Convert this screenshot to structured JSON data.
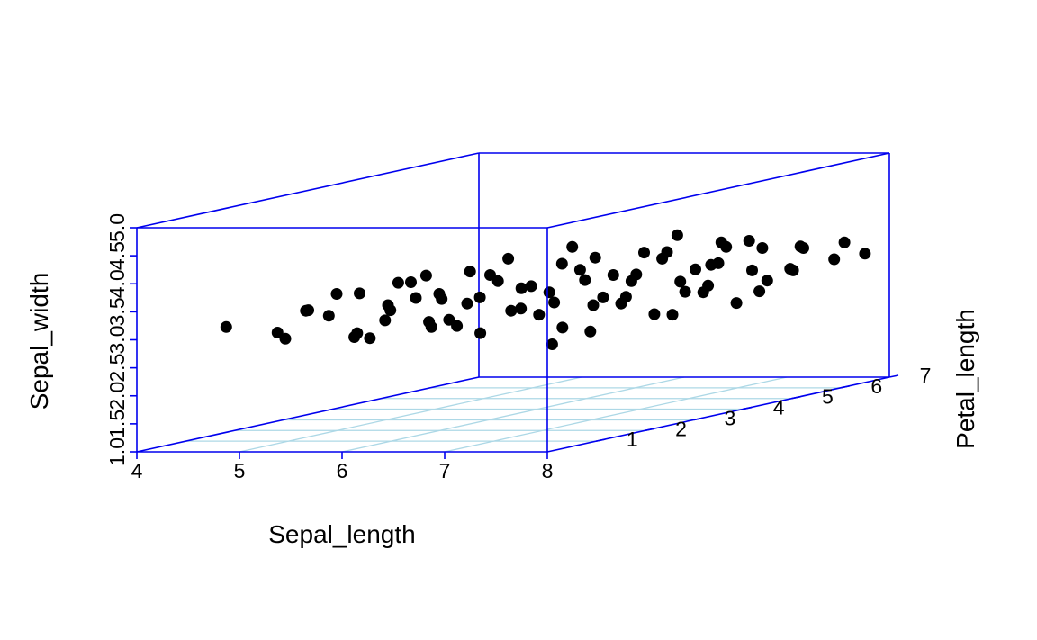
{
  "chart_data": {
    "type": "scatter3d",
    "title": "",
    "xlabel": "Sepal_length",
    "ylabel": "Sepal_width",
    "zlabel": "Petal_length",
    "xlim": [
      4,
      8
    ],
    "ylim": [
      1,
      5
    ],
    "zlim": [
      0,
      7
    ],
    "x_ticks": [
      "4",
      "5",
      "6",
      "7",
      "8"
    ],
    "y_ticks": [
      "1.0",
      "1.5",
      "2.0",
      "2.5",
      "3.0",
      "3.5",
      "4.0",
      "4.5",
      "5.0"
    ],
    "z_ticks": [
      "1",
      "2",
      "3",
      "4",
      "5",
      "6",
      "7"
    ],
    "grid": true,
    "box_color": "#0000ee",
    "grid_color": "#add8e6",
    "point_color": "#000000",
    "series": [
      {
        "x": [
          4.3,
          4.8,
          5.1,
          5.3,
          5.6,
          5.7,
          5.9,
          6.1,
          6.3,
          6.4,
          4.4,
          4.6,
          4.9,
          5.1,
          5.4,
          5.5,
          5.8,
          5.9,
          6.2,
          6.3,
          6.6,
          6.7,
          7.0,
          7.1,
          7.4,
          4.5,
          4.8,
          5.1,
          5.2,
          5.5,
          5.6,
          5.9,
          6.0,
          6.3,
          6.4,
          6.7,
          6.8,
          7.1,
          7.2,
          7.5,
          7.6,
          7.9,
          4.9,
          5.2,
          5.3,
          5.6,
          5.7,
          6.0,
          6.1,
          6.4,
          6.5,
          6.8,
          6.9,
          7.2,
          7.3,
          7.6,
          7.7,
          8.0,
          5.4,
          5.7,
          5.8,
          6.1,
          6.2,
          6.5,
          6.6,
          6.9,
          7.0,
          7.3,
          7.4,
          7.7,
          7.8,
          6.2,
          6.5,
          6.6,
          6.9,
          7.0,
          7.3,
          7.4,
          7.7,
          7.8,
          8.0
        ],
        "y": [
          3.0,
          2.9,
          3.3,
          3.2,
          3.6,
          2.8,
          3.3,
          3.8,
          3.0,
          3.5,
          2.6,
          3.1,
          3.4,
          2.7,
          3.2,
          3.6,
          2.9,
          3.4,
          3.8,
          2.7,
          3.1,
          3.5,
          2.5,
          2.8,
          3.2,
          2.4,
          2.7,
          3.1,
          3.5,
          2.6,
          3.0,
          3.4,
          3.8,
          2.8,
          3.2,
          3.6,
          2.5,
          3.0,
          3.4,
          3.8,
          2.8,
          3.2,
          2.5,
          2.9,
          3.3,
          2.7,
          3.1,
          3.5,
          3.8,
          2.9,
          3.3,
          3.7,
          2.6,
          3.0,
          3.4,
          3.8,
          2.8,
          3.2,
          2.6,
          3.0,
          3.4,
          2.7,
          3.1,
          3.5,
          3.8,
          2.9,
          3.3,
          3.7,
          2.8,
          3.2,
          3.6,
          2.8,
          3.1,
          3.5,
          3.0,
          3.4,
          3.0,
          3.4,
          3.2,
          3.5,
          3.3
        ],
        "z": [
          1.2,
          1.2,
          1.2,
          1.2,
          1.2,
          1.2,
          1.2,
          1.2,
          1.2,
          1.2,
          2.2,
          2.2,
          2.2,
          2.2,
          2.2,
          2.2,
          2.2,
          2.2,
          2.2,
          2.2,
          2.2,
          2.2,
          2.2,
          2.2,
          2.2,
          3.4,
          3.4,
          3.4,
          3.4,
          3.4,
          3.4,
          3.4,
          3.4,
          3.4,
          3.4,
          3.4,
          3.4,
          3.4,
          3.4,
          3.4,
          3.4,
          3.4,
          4.5,
          4.5,
          4.5,
          4.5,
          4.5,
          4.5,
          4.5,
          4.5,
          4.5,
          4.5,
          4.5,
          4.5,
          4.5,
          4.5,
          4.5,
          4.5,
          5.6,
          5.6,
          5.6,
          5.6,
          5.6,
          5.6,
          5.6,
          5.6,
          5.6,
          5.6,
          5.6,
          5.6,
          5.6,
          6.5,
          6.5,
          6.5,
          6.5,
          6.5,
          6.5,
          6.5,
          6.5,
          6.5,
          6.5
        ]
      }
    ]
  }
}
